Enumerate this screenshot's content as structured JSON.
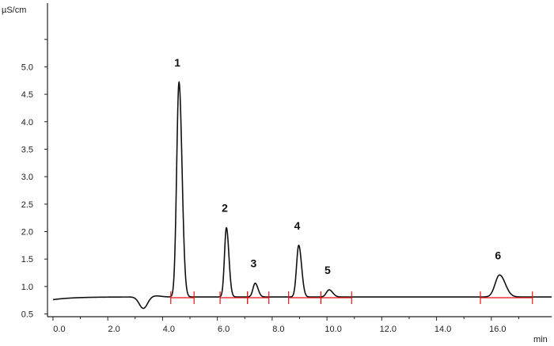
{
  "chart_data": {
    "type": "line",
    "ylabel": "µS/cm",
    "xlabel": "min",
    "xlim": [
      -0.2,
      18.2
    ],
    "ylim": [
      0.45,
      5.9
    ],
    "x_ticks": [
      0.0,
      2.0,
      4.0,
      6.0,
      8.0,
      10.0,
      12.0,
      14.0,
      16.0
    ],
    "x_tick_labels": [
      "0.0",
      "2.0",
      "4.0",
      "6.0",
      "8.0",
      "10.0",
      "12.0",
      "14.0",
      "16.0"
    ],
    "y_ticks": [
      0.5,
      1.0,
      1.5,
      2.0,
      2.5,
      3.0,
      3.5,
      4.0,
      4.5,
      5.0
    ],
    "y_tick_labels": [
      "0.5",
      "1.0",
      "1.5",
      "2.0",
      "2.5",
      "3.0",
      "3.5",
      "4.0",
      "4.5",
      "5.0"
    ],
    "baseline": 0.81,
    "peaks": [
      {
        "label": "1",
        "x": 4.6,
        "y": 4.72,
        "width": 0.085
      },
      {
        "label": "2",
        "x": 6.33,
        "y": 2.07,
        "width": 0.07
      },
      {
        "label": "3",
        "x": 7.38,
        "y": 1.06,
        "width": 0.08
      },
      {
        "label": "4",
        "x": 8.97,
        "y": 1.75,
        "width": 0.08
      },
      {
        "label": "5",
        "x": 10.08,
        "y": 0.94,
        "width": 0.1
      },
      {
        "label": "6",
        "x": 16.3,
        "y": 1.21,
        "width": 0.16
      }
    ],
    "dip": {
      "x": 3.3,
      "y": 0.6
    },
    "integration_segments": [
      [
        4.3,
        5.15
      ],
      [
        6.1,
        7.1
      ],
      [
        7.1,
        7.88
      ],
      [
        8.6,
        9.78
      ],
      [
        9.78,
        10.9
      ],
      [
        15.6,
        17.5
      ]
    ],
    "colors": {
      "trace": "#111111",
      "integration": "#e01515",
      "axis": "#222222"
    }
  }
}
